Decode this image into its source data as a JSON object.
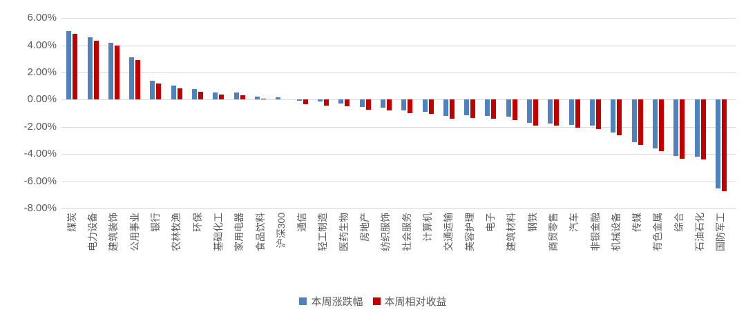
{
  "chart_data": {
    "type": "bar",
    "title": "",
    "categories": [
      "煤炭",
      "电力设备",
      "建筑装饰",
      "公用事业",
      "银行",
      "农林牧渔",
      "环保",
      "基础化工",
      "家用电器",
      "食品饮料",
      "沪深300",
      "通信",
      "轻工制造",
      "医药生物",
      "房地产",
      "纺织服饰",
      "社会服务",
      "计算机",
      "交通运输",
      "美容护理",
      "电子",
      "建筑材料",
      "钢铁",
      "商贸零售",
      "汽车",
      "非银金融",
      "机械设备",
      "传媒",
      "有色金属",
      "综合",
      "石油石化",
      "国防军工"
    ],
    "series": [
      {
        "name": "本周涨跌幅",
        "color": "#4F81BD",
        "values": [
          5.05,
          4.56,
          4.18,
          3.1,
          1.4,
          1.02,
          0.79,
          0.55,
          0.5,
          0.23,
          0.17,
          -0.09,
          -0.16,
          -0.28,
          -0.56,
          -0.6,
          -0.8,
          -0.88,
          -1.18,
          -1.16,
          -1.2,
          -1.28,
          -1.7,
          -1.74,
          -1.87,
          -1.94,
          -2.41,
          -3.15,
          -3.61,
          -4.17,
          -4.2,
          -6.53
        ]
      },
      {
        "name": "本周相对收益",
        "color": "#C00000",
        "values": [
          4.85,
          4.34,
          3.96,
          2.9,
          1.2,
          0.83,
          0.6,
          0.37,
          0.31,
          0.05,
          0.0,
          -0.33,
          -0.42,
          -0.5,
          -0.77,
          -0.8,
          -0.99,
          -1.07,
          -1.39,
          -1.38,
          -1.43,
          -1.49,
          -1.9,
          -1.94,
          -2.09,
          -2.16,
          -2.64,
          -3.34,
          -3.79,
          -4.36,
          -4.4,
          -6.74
        ]
      }
    ],
    "y_axis": {
      "min": -8,
      "max": 6,
      "step": 2,
      "ticks": [
        {
          "value": 6,
          "label": "6.00%"
        },
        {
          "value": 4,
          "label": "4.00%"
        },
        {
          "value": 2,
          "label": "2.00%"
        },
        {
          "value": 0,
          "label": "0.00%"
        },
        {
          "value": -2,
          "label": "-2.00%"
        },
        {
          "value": -4,
          "label": "-4.00%"
        },
        {
          "value": -6,
          "label": "-6.00%"
        },
        {
          "value": -8,
          "label": "-8.00%"
        }
      ]
    },
    "grid": true,
    "legend_position": "bottom",
    "colors": {
      "grid": "#D9D9D9",
      "axis_text": "#595959",
      "background": "#FFFFFF"
    }
  }
}
